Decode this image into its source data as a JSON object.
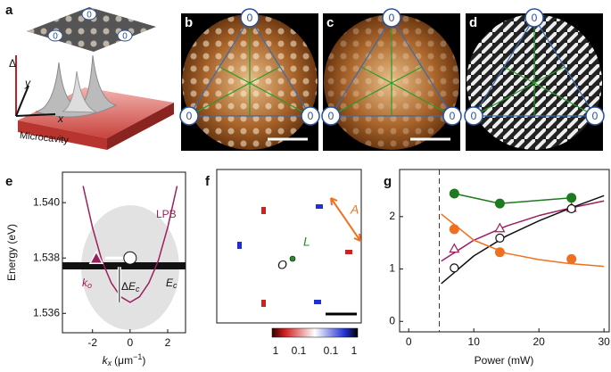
{
  "panels": {
    "a": {
      "label": "a",
      "delta": "Δ",
      "y": "y",
      "x": "x",
      "substrate": "Microcavity",
      "node_labels": [
        "0",
        "0",
        "0"
      ]
    },
    "b": {
      "label": "b",
      "node_labels": [
        "0",
        "0",
        "0"
      ]
    },
    "c": {
      "label": "c",
      "node_labels": [
        "0",
        "0",
        "0"
      ]
    },
    "d": {
      "label": "d",
      "node_labels": [
        "0",
        "0",
        "0"
      ]
    },
    "e": {
      "label": "e",
      "ylabel": "Energy (eV)",
      "xlabel": {
        "symbol": "k",
        "sub": "x",
        "unit": "(μm",
        "sup": "−1",
        "close": ")"
      },
      "xlim": [
        -3.6,
        2.95
      ],
      "ylim": [
        1.5353,
        1.5411
      ],
      "xticks": [
        -2,
        0,
        2
      ],
      "yticks": [
        {
          "value": 1.536,
          "label": "1.536"
        },
        {
          "value": 1.538,
          "label": "1.538"
        },
        {
          "value": 1.54,
          "label": "1.540"
        }
      ],
      "lpb_label": "LPB",
      "lpb": {
        "x": [
          -2.5,
          -2,
          -1.5,
          -1,
          -0.5,
          0,
          0.5,
          1,
          1.5,
          2,
          2.5
        ],
        "values": [
          1.5406,
          1.5391,
          1.5379,
          1.5371,
          1.5366,
          1.5364,
          1.5366,
          1.5371,
          1.5379,
          1.5391,
          1.5406
        ]
      },
      "ko": {
        "symbol": "k",
        "sub": "o",
        "x": -1.8,
        "value": 1.538
      },
      "ec": {
        "symbol": "E",
        "sub": "c",
        "x": 0,
        "value": 1.538
      },
      "delta_ec": {
        "delta": "Δ",
        "symbol": "E",
        "sub": "c"
      }
    },
    "f": {
      "label": "f",
      "annotations": {
        "A": "A",
        "L": "L",
        "O": "O"
      },
      "colorbar_ticks": [
        "1",
        "0.1",
        "0.1",
        "1"
      ]
    },
    "g": {
      "label": "g",
      "type": "scatter",
      "xlabel": "Power (mW)",
      "xlim": [
        -1.4,
        30.8
      ],
      "ylim": [
        -0.2,
        2.9
      ],
      "xticks": [
        0,
        10,
        20,
        30
      ],
      "yticks": [
        0,
        1,
        2
      ],
      "threshold": 4.7,
      "series": [
        {
          "color": "#1e7a1e",
          "marker": "circle-filled",
          "x": [
            7,
            14,
            25
          ],
          "values": [
            2.44,
            2.25,
            2.36
          ]
        },
        {
          "color": "#9c1f5e",
          "marker": "triangle-open",
          "x": [
            7,
            14,
            25
          ],
          "values": [
            1.39,
            1.78,
            2.17
          ]
        },
        {
          "color": "#111111",
          "marker": "circle-open",
          "x": [
            7,
            14,
            25
          ],
          "values": [
            1.02,
            1.59,
            2.15
          ]
        },
        {
          "color": "#f07020",
          "marker": "circle-filled",
          "x": [
            7,
            14,
            25
          ],
          "values": [
            1.76,
            1.32,
            1.19
          ]
        }
      ],
      "fits": [
        {
          "color": "#1e7a1e",
          "x": [
            7,
            14,
            25
          ],
          "values": [
            2.44,
            2.25,
            2.36
          ]
        },
        {
          "color": "#9c1f5e",
          "x": [
            5,
            10,
            15,
            20,
            25,
            30
          ],
          "values": [
            1.15,
            1.55,
            1.82,
            2.02,
            2.17,
            2.3
          ]
        },
        {
          "color": "#111111",
          "x": [
            5,
            10,
            15,
            20,
            25,
            30
          ],
          "values": [
            0.72,
            1.25,
            1.63,
            1.92,
            2.17,
            2.4
          ]
        },
        {
          "color": "#f07020",
          "x": [
            5,
            10,
            15,
            20,
            25,
            30
          ],
          "values": [
            2.05,
            1.55,
            1.3,
            1.18,
            1.1,
            1.05
          ]
        }
      ]
    }
  }
}
